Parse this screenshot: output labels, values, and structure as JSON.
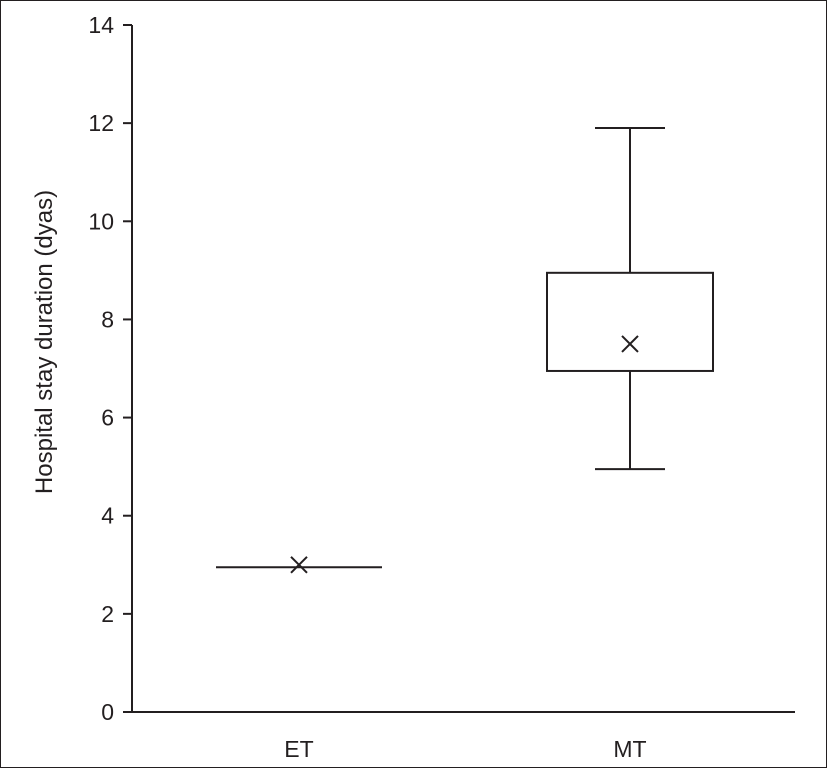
{
  "chart_data": {
    "type": "box",
    "ylabel": "Hospital stay duration (dyas)",
    "xlabel": "",
    "ylim": [
      0,
      14
    ],
    "yticks": [
      0,
      2,
      4,
      6,
      8,
      10,
      12,
      14
    ],
    "categories": [
      "ET",
      "MT"
    ],
    "boxes": [
      {
        "category": "ET",
        "min": 2.95,
        "q1": 2.95,
        "median": 2.95,
        "q3": 2.95,
        "max": 2.95,
        "mean": 3.0
      },
      {
        "category": "MT",
        "min": 4.95,
        "q1": 6.95,
        "median": 6.95,
        "q3": 8.95,
        "max": 11.9,
        "mean": 7.5
      }
    ],
    "grid": false,
    "legend": "none",
    "colors": {
      "ink": "#231f20",
      "box_fill": "#ffffff"
    }
  }
}
